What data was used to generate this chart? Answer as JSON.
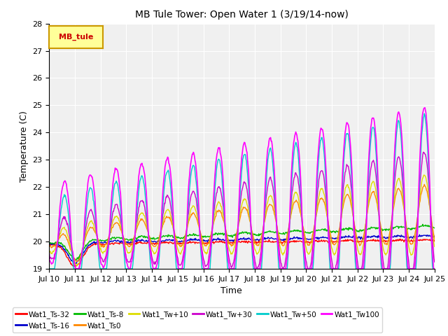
{
  "title": "MB Tule Tower: Open Water 1 (3/19/14-now)",
  "xlabel": "Time",
  "ylabel": "Temperature (C)",
  "ylim": [
    19.0,
    28.0
  ],
  "yticks": [
    19.0,
    20.0,
    21.0,
    22.0,
    23.0,
    24.0,
    25.0,
    26.0,
    27.0,
    28.0
  ],
  "xtick_labels": [
    "Jul 10",
    "Jul 11",
    "Jul 12",
    "Jul 13",
    "Jul 14",
    "Jul 15",
    "Jul 16",
    "Jul 17",
    "Jul 18",
    "Jul 19",
    "Jul 20",
    "Jul 21",
    "Jul 22",
    "Jul 23",
    "Jul 24",
    "Jul 25"
  ],
  "series": {
    "Wat1_Ts-32": {
      "color": "#ff0000",
      "lw": 1.0
    },
    "Wat1_Ts-16": {
      "color": "#0000cc",
      "lw": 1.0
    },
    "Wat1_Ts-8": {
      "color": "#00bb00",
      "lw": 1.0
    },
    "Wat1_Ts0": {
      "color": "#ff8800",
      "lw": 1.0
    },
    "Wat1_Tw+10": {
      "color": "#dddd00",
      "lw": 1.0
    },
    "Wat1_Tw+30": {
      "color": "#cc00cc",
      "lw": 1.0
    },
    "Wat1_Tw+50": {
      "color": "#00cccc",
      "lw": 1.0
    },
    "Wat1_Tw100": {
      "color": "#ff00ff",
      "lw": 1.2
    }
  },
  "legend_box_color": "#ffff99",
  "legend_box_edge": "#cc9900",
  "legend_text": "MB_tule",
  "plot_bg": "#f0f0f0"
}
